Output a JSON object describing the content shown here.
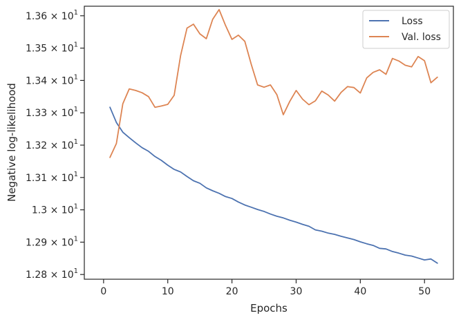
{
  "chart_data": {
    "type": "line",
    "xlabel": "Epochs",
    "ylabel": "Negative log-likelihood",
    "xlim": [
      -3,
      54.5
    ],
    "ylim": [
      12.7854,
      13.6295
    ],
    "x_ticks": [
      {
        "value": 0,
        "label": "0"
      },
      {
        "value": 10,
        "label": "10"
      },
      {
        "value": 20,
        "label": "20"
      },
      {
        "value": 30,
        "label": "30"
      },
      {
        "value": 40,
        "label": "40"
      },
      {
        "value": 50,
        "label": "50"
      }
    ],
    "y_ticks": [
      {
        "value": 12.8,
        "mantissa": "1.28",
        "sep": " × ",
        "base": "10",
        "exp": "1"
      },
      {
        "value": 12.9,
        "mantissa": "1.29",
        "sep": " × ",
        "base": "10",
        "exp": "1"
      },
      {
        "value": 13.0,
        "mantissa": "1.3",
        "sep": " × ",
        "base": "10",
        "exp": "1"
      },
      {
        "value": 13.1,
        "mantissa": "1.31",
        "sep": " × ",
        "base": "10",
        "exp": "1"
      },
      {
        "value": 13.2,
        "mantissa": "1.32",
        "sep": " × ",
        "base": "10",
        "exp": "1"
      },
      {
        "value": 13.3,
        "mantissa": "1.33",
        "sep": " × ",
        "base": "10",
        "exp": "1"
      },
      {
        "value": 13.4,
        "mantissa": "1.34",
        "sep": " × ",
        "base": "10",
        "exp": "1"
      },
      {
        "value": 13.5,
        "mantissa": "1.35",
        "sep": " × ",
        "base": "10",
        "exp": "1"
      },
      {
        "value": 13.6,
        "mantissa": "1.36",
        "sep": " × ",
        "base": "10",
        "exp": "1"
      }
    ],
    "grid": false,
    "legend_position": "top-right",
    "x": [
      1,
      2,
      3,
      4,
      5,
      6,
      7,
      8,
      9,
      10,
      11,
      12,
      13,
      14,
      15,
      16,
      17,
      18,
      19,
      20,
      21,
      22,
      23,
      24,
      25,
      26,
      27,
      28,
      29,
      30,
      31,
      32,
      33,
      34,
      35,
      36,
      37,
      38,
      39,
      40,
      41,
      42,
      43,
      44,
      45,
      46,
      47,
      48,
      49,
      50,
      51,
      52
    ],
    "series": [
      {
        "name": "Loss",
        "color": "#4c72b0",
        "values": [
          13.317,
          13.27,
          13.24,
          13.223,
          13.207,
          13.192,
          13.181,
          13.165,
          13.153,
          13.138,
          13.125,
          13.117,
          13.103,
          13.09,
          13.082,
          13.068,
          13.059,
          13.051,
          13.041,
          13.035,
          13.024,
          13.015,
          13.008,
          13.001,
          12.995,
          12.987,
          12.98,
          12.975,
          12.968,
          12.962,
          12.955,
          12.949,
          12.938,
          12.934,
          12.928,
          12.924,
          12.918,
          12.913,
          12.908,
          12.901,
          12.895,
          12.89,
          12.881,
          12.879,
          12.871,
          12.866,
          12.86,
          12.857,
          12.851,
          12.845,
          12.848,
          12.835
        ]
      },
      {
        "name": "Val. loss",
        "color": "#dd8452",
        "values": [
          13.162,
          13.205,
          13.328,
          13.374,
          13.369,
          13.362,
          13.35,
          13.317,
          13.321,
          13.326,
          13.354,
          13.477,
          13.562,
          13.574,
          13.544,
          13.529,
          13.589,
          13.619,
          13.57,
          13.527,
          13.54,
          13.521,
          13.45,
          13.386,
          13.379,
          13.386,
          13.356,
          13.294,
          13.335,
          13.369,
          13.342,
          13.325,
          13.337,
          13.367,
          13.355,
          13.336,
          13.363,
          13.381,
          13.378,
          13.361,
          13.408,
          13.425,
          13.433,
          13.419,
          13.468,
          13.46,
          13.447,
          13.442,
          13.474,
          13.461,
          13.393,
          13.41
        ]
      }
    ]
  }
}
